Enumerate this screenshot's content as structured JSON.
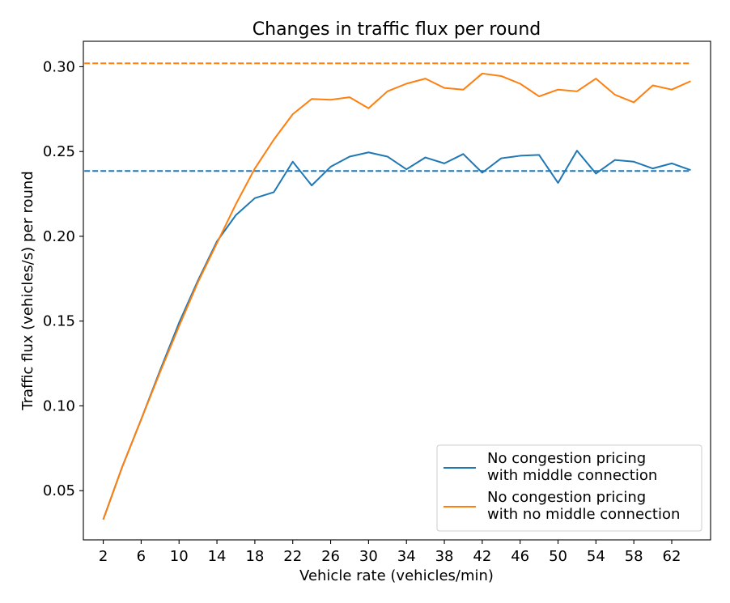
{
  "chart_data": {
    "type": "line",
    "title": "Changes in traffic flux per round",
    "xlabel": "Vehicle rate (vehicles/min)",
    "ylabel": "Traffic flux (vehicles/s) per round",
    "xlim": [
      -0.1,
      66.1
    ],
    "ylim": [
      0.021,
      0.315
    ],
    "xticks": [
      2,
      6,
      10,
      14,
      18,
      22,
      26,
      30,
      34,
      38,
      42,
      46,
      50,
      54,
      58,
      62
    ],
    "yticks": [
      0.05,
      0.1,
      0.15,
      0.2,
      0.25,
      0.3
    ],
    "ytick_labels": [
      "0.05",
      "0.10",
      "0.15",
      "0.20",
      "0.25",
      "0.30"
    ],
    "x": [
      2,
      4,
      6,
      8,
      10,
      12,
      14,
      16,
      18,
      20,
      22,
      24,
      26,
      28,
      30,
      32,
      34,
      36,
      38,
      40,
      42,
      44,
      46,
      48,
      50,
      52,
      54,
      56,
      58,
      60,
      62,
      64
    ],
    "series": [
      {
        "name": "No congestion pricing\nwith middle connection",
        "legend_lines": [
          "No congestion pricing",
          "with middle connection"
        ],
        "color": "#1f77b4",
        "values": [
          0.033,
          0.064,
          0.092,
          0.121,
          0.149,
          0.174,
          0.197,
          0.2125,
          0.2225,
          0.226,
          0.244,
          0.23,
          0.241,
          0.247,
          0.2495,
          0.247,
          0.2395,
          0.2465,
          0.243,
          0.2485,
          0.2375,
          0.246,
          0.2475,
          0.248,
          0.2315,
          0.2505,
          0.237,
          0.245,
          0.244,
          0.24,
          0.243,
          0.239
        ]
      },
      {
        "name": "No congestion pricing\nwith no middle connection",
        "legend_lines": [
          "No congestion pricing",
          "with no middle connection"
        ],
        "color": "#ff7f0e",
        "values": [
          0.033,
          0.064,
          0.092,
          0.12,
          0.147,
          0.173,
          0.196,
          0.219,
          0.24,
          0.257,
          0.272,
          0.281,
          0.2805,
          0.282,
          0.2755,
          0.2855,
          0.29,
          0.293,
          0.2875,
          0.2865,
          0.296,
          0.2945,
          0.29,
          0.2825,
          0.2865,
          0.2855,
          0.293,
          0.2835,
          0.279,
          0.289,
          0.2865,
          0.2915
        ]
      }
    ],
    "reference_lines": [
      {
        "color": "#1f77b4",
        "value": 0.2385,
        "x_range": [
          0,
          64
        ]
      },
      {
        "color": "#ff7f0e",
        "value": 0.302,
        "x_range": [
          0,
          64
        ]
      }
    ],
    "legend_position": "lower-right",
    "grid": false
  }
}
